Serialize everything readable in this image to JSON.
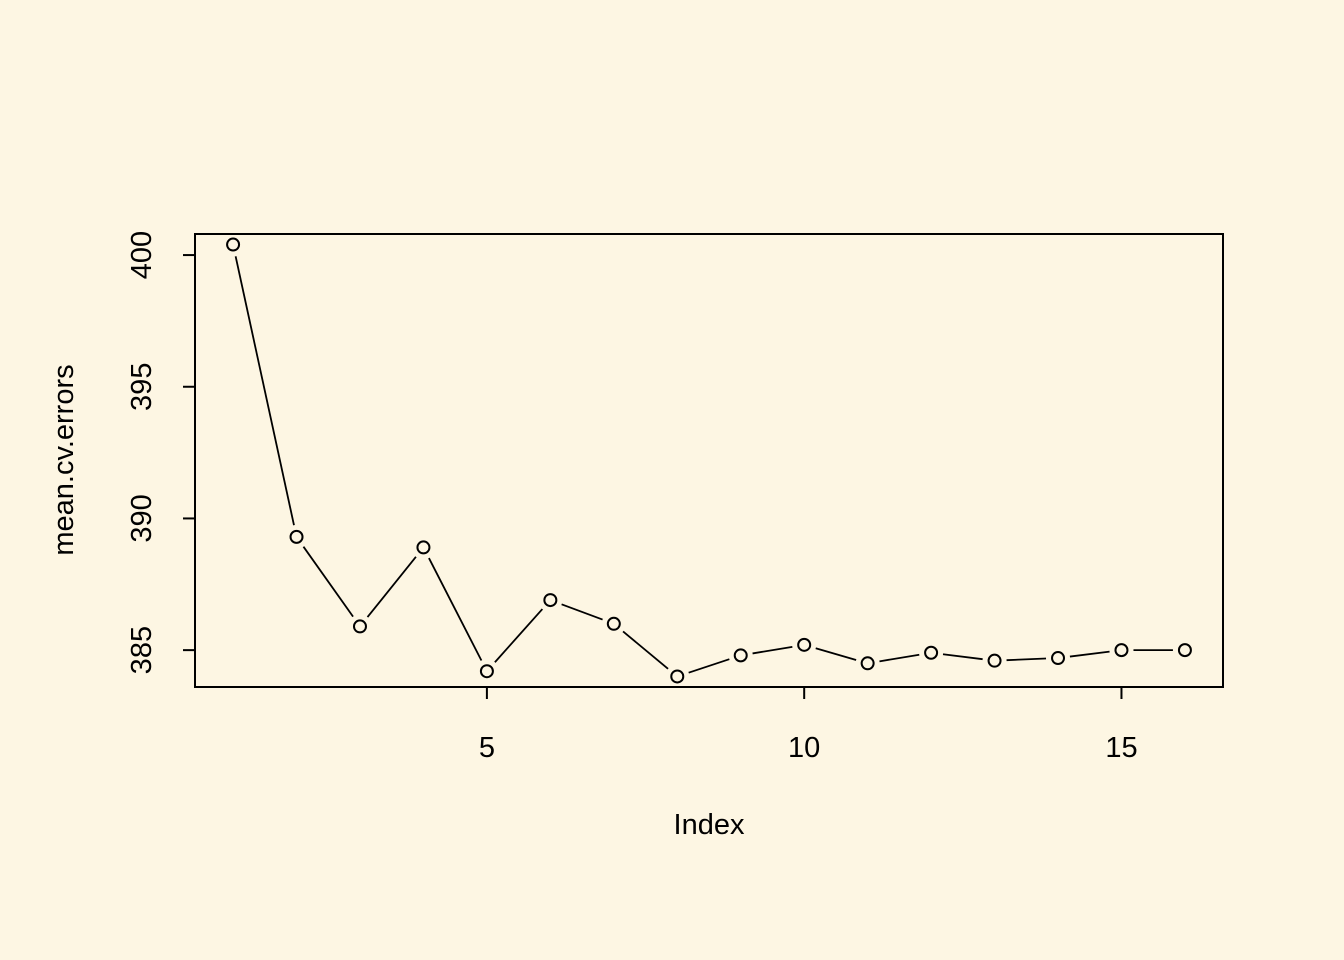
{
  "chart_data": {
    "type": "line",
    "title": "",
    "xlabel": "Index",
    "ylabel": "mean.cv.errors",
    "x": [
      1,
      2,
      3,
      4,
      5,
      6,
      7,
      8,
      9,
      10,
      11,
      12,
      13,
      14,
      15,
      16
    ],
    "series": [
      {
        "values": [
          400.4,
          389.3,
          385.9,
          388.9,
          384.2,
          386.9,
          386.0,
          384.0,
          384.8,
          385.2,
          384.5,
          384.9,
          384.6,
          384.7,
          385.0,
          385.0
        ]
      }
    ],
    "xlim": [
      0.4,
      16.6
    ],
    "ylim": [
      383.6,
      400.8
    ],
    "xticks": [
      5,
      10,
      15
    ],
    "yticks": [
      385,
      390,
      395,
      400
    ],
    "grid": false,
    "legend": "none",
    "marker": "open-circle",
    "line_style": "segments-with-gaps",
    "colors": {
      "background": "#fdf6e3",
      "foreground": "#000000"
    }
  }
}
